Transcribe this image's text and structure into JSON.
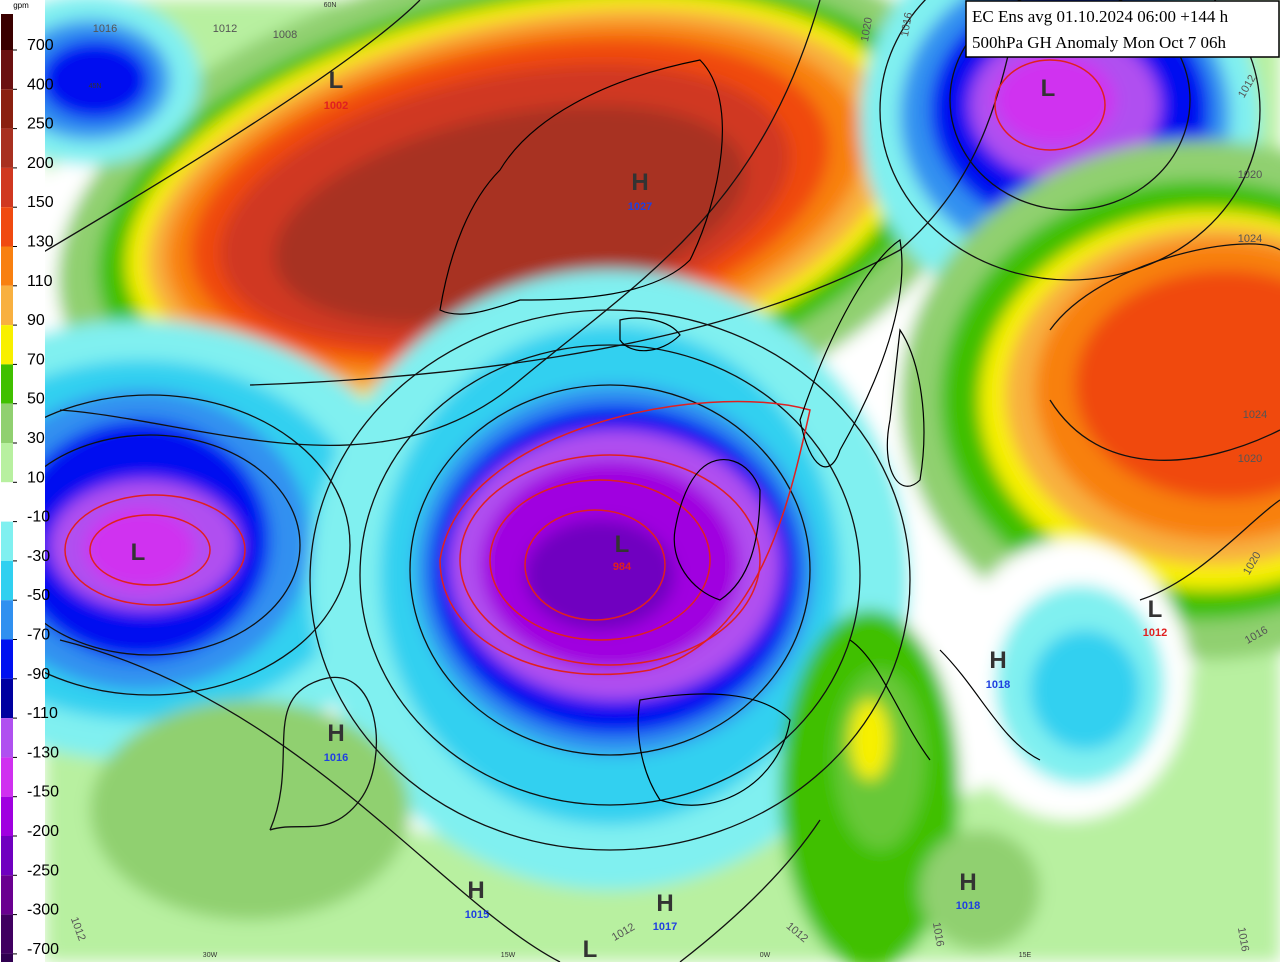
{
  "title": {
    "line1": "EC Ens avg 01.10.2024 06:00 +144 h",
    "line2": "500hPa GH Anomaly Mon Oct 7 06h"
  },
  "colorbar": {
    "unit": "gpm",
    "labels": [
      700,
      400,
      250,
      200,
      150,
      130,
      110,
      90,
      70,
      50,
      30,
      10,
      -10,
      -30,
      -50,
      -70,
      -90,
      -110,
      -130,
      -150,
      -200,
      -250,
      -300,
      -700
    ],
    "colors": [
      "#3a0000",
      "#6a1010",
      "#8a2010",
      "#a83020",
      "#d03820",
      "#f04a10",
      "#f88010",
      "#f8b040",
      "#f8f000",
      "#40c000",
      "#90d070",
      "#b8f0a0",
      "#ffffff",
      "#80f0f0",
      "#30d0f0",
      "#3090f0",
      "#0010f0",
      "#0000a0",
      "#b050f0",
      "#d030f0",
      "#a000e0",
      "#7000c0",
      "#6a0090",
      "#400060",
      "#300050"
    ]
  },
  "centers": [
    {
      "letter": "L",
      "value": 1002
    },
    {
      "letter": "H",
      "value": 1027
    },
    {
      "letter": "L"
    },
    {
      "letter": "L",
      "value": 984
    },
    {
      "letter": "L"
    },
    {
      "letter": "H",
      "value": 1016
    },
    {
      "letter": "H",
      "value": 1015
    },
    {
      "letter": "H",
      "value": 1017
    },
    {
      "letter": "H",
      "value": 1018
    },
    {
      "letter": "H",
      "value": 1018
    },
    {
      "letter": "L",
      "value": 1012
    },
    {
      "letter": "L"
    }
  ],
  "isobar_labels": [
    1016,
    1012,
    1008,
    1020,
    1016,
    1012,
    1020,
    1024,
    1024,
    1020,
    1020,
    1016,
    1012,
    1012,
    1012,
    1016,
    1016
  ],
  "graticule_labels": [
    "45N",
    "60N",
    "30W",
    "15W",
    "0W",
    "15E"
  ]
}
